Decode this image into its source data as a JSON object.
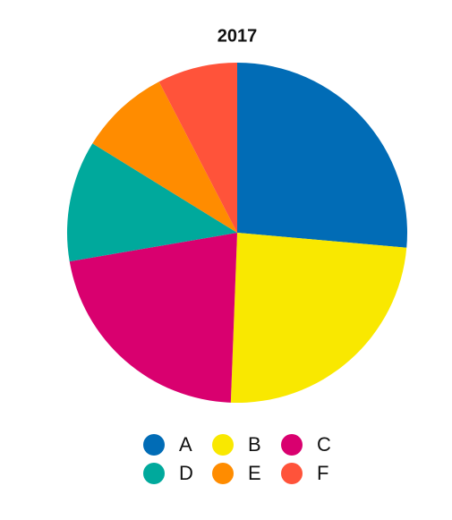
{
  "chart_data": {
    "type": "pie",
    "title": "2017",
    "categories": [
      "A",
      "B",
      "C",
      "D",
      "E",
      "F"
    ],
    "values": [
      26.4,
      24.2,
      21.7,
      11.5,
      8.6,
      7.6
    ],
    "colors": [
      "#016cb6",
      "#f9e800",
      "#d9006f",
      "#00a99c",
      "#ff8c00",
      "#ff533a"
    ]
  }
}
